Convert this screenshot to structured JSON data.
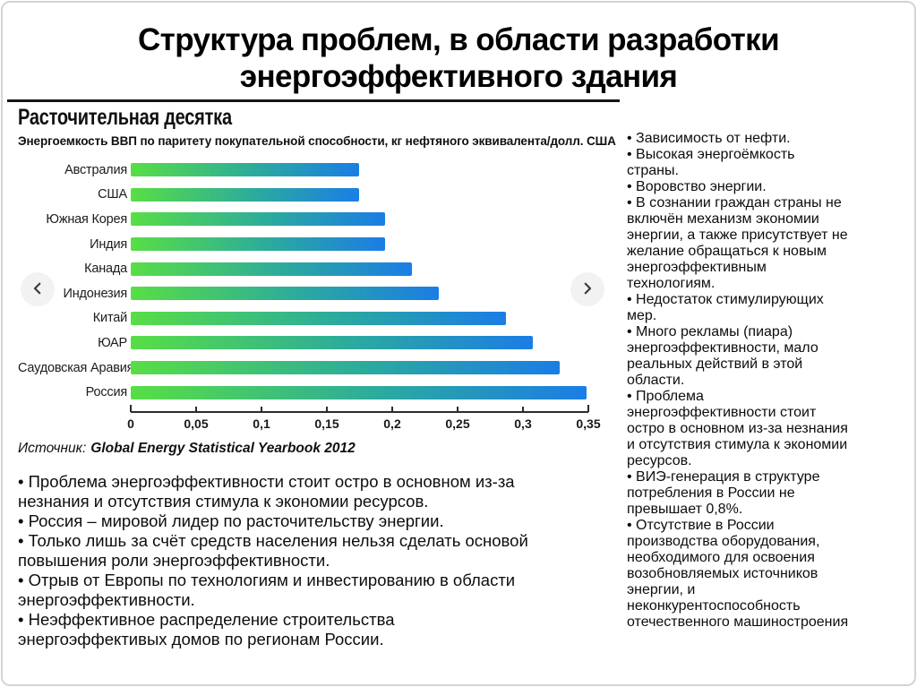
{
  "bullet_char": "•",
  "title": {
    "line1": "Структура проблем, в области разработки",
    "line2": "энергоэффективного здания"
  },
  "chart": {
    "title": "Расточительная десятка",
    "subtitle": "Энергоемкость ВВП по паритету покупательной способности, кг нефтяного эквивалента/долл. США",
    "source_label": "Источник:",
    "source_value": "Global Energy Statistical Yearbook 2012"
  },
  "chart_data": {
    "type": "bar",
    "orientation": "horizontal",
    "title": "Расточительная десятка",
    "subtitle": "Энергоемкость ВВП по паритету покупательной способности, кг нефтяного эквивалента/долл. США",
    "source": "Источник: Global Energy Statistical Yearbook 2012",
    "categories": [
      "Австралия",
      "США",
      "Южная Корея",
      "Индия",
      "Канада",
      "Индонезия",
      "Китай",
      "ЮАР",
      "Саудовская Аравия",
      "Россия"
    ],
    "values": [
      0.17,
      0.17,
      0.19,
      0.19,
      0.21,
      0.23,
      0.28,
      0.3,
      0.32,
      0.34
    ],
    "xlim": [
      0,
      0.35
    ],
    "x_ticks": [
      "0",
      "0,05",
      "0,1",
      "0,15",
      "0,2",
      "0,25",
      "0,3",
      "0,35"
    ],
    "grid": false,
    "legend": false,
    "bar_gradient": [
      "#58de45",
      "#2baa9e",
      "#1b7de6"
    ]
  },
  "left_bullets": [
    "Проблема энергоэффективности стоит остро в основном из-за\nнезнания и отсутствия стимула к экономии ресурсов.",
    "Россия – мировой лидер по расточительству энергии.",
    "Только лишь за счёт средств населения нельзя сделать основой\nповышения роли энергоэффективности.",
    "Отрыв от Европы по технологиям и инвестированию в области\nэнергоэффективности.",
    "Неэффективное распределение строительства\nэнергоэффективых домов по регионам России."
  ],
  "right_bullets": [
    "Зависимость от нефти.",
    "Высокая энергоёмкость\nстраны.",
    "Воровство энергии.",
    "В сознании граждан страны не\nвключён механизм экономии\nэнергии, а также присутствует не\nжелание обращаться к новым\nэнергоэффективным\nтехнологиям.",
    "Недостаток стимулирующих\nмер.",
    "Много рекламы (пиара)\nэнергоэффективности, мало\nреальных действий в этой\nобласти.",
    "Проблема\nэнергоэффективности стоит\nостро в основном из-за незнания\nи отсутствия стимула к экономии\nресурсов.",
    "ВИЭ-генерация в структуре\nпотребления в России не\nпревышает 0,8%.",
    "Отсутствие в России\nпроизводства оборудования,\nнеобходимого для освоения\nвозобновляемых источников\nэнергии, и\nнеконкурентоспособность\nотечественного машиностроения"
  ]
}
